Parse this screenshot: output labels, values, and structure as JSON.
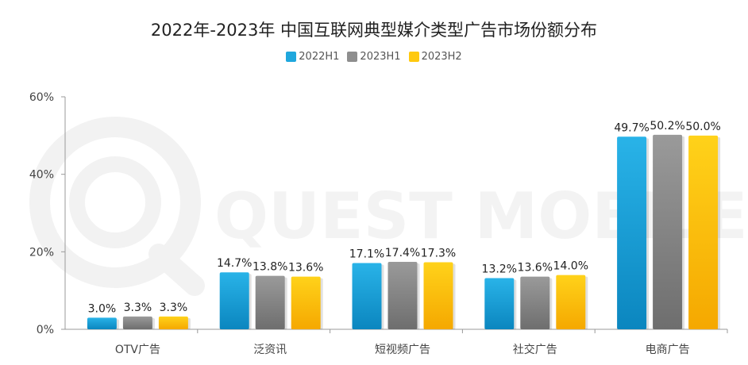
{
  "chart_data": {
    "type": "bar",
    "title": "2022年-2023年 中国互联网典型媒介类型广告市场份额分布",
    "categories": [
      "OTV广告",
      "泛资讯",
      "短视频广告",
      "社交广告",
      "电商广告"
    ],
    "series": [
      {
        "name": "2022H1",
        "values": [
          3.0,
          14.7,
          17.1,
          13.2,
          49.7
        ],
        "labels": [
          "3.0%",
          "14.7%",
          "17.1%",
          "13.2%",
          "49.7%"
        ],
        "color": "#1fa7dd",
        "color_dark": "#0b86bf"
      },
      {
        "name": "2023H1",
        "values": [
          3.3,
          13.8,
          17.4,
          13.6,
          50.2
        ],
        "labels": [
          "3.3%",
          "13.8%",
          "17.4%",
          "13.6%",
          "50.2%"
        ],
        "color": "#8e8e8e",
        "color_dark": "#6e6e6e"
      },
      {
        "name": "2023H2",
        "values": [
          3.3,
          13.6,
          17.3,
          14.0,
          50.0
        ],
        "labels": [
          "3.3%",
          "13.6%",
          "17.3%",
          "14.0%",
          "50.0%"
        ],
        "color": "#ffc90e",
        "color_dark": "#f5a800"
      }
    ],
    "ylim": [
      0,
      60
    ],
    "yticks": [
      0,
      20,
      40,
      60
    ],
    "ytick_labels": [
      "0%",
      "20%",
      "40%",
      "60%"
    ],
    "xlabel": "",
    "ylabel": "",
    "grid": false,
    "legend_position": "top-center",
    "watermark": "QUEST MOBILE"
  }
}
